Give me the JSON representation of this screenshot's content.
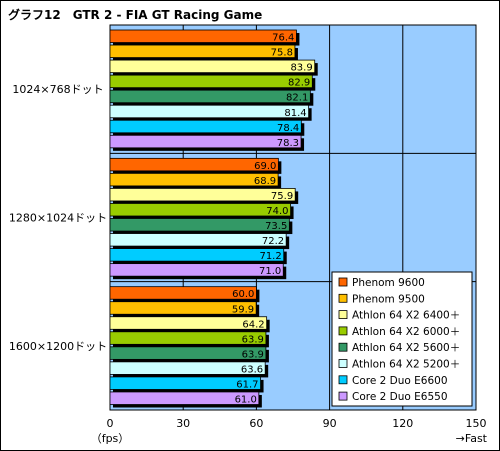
{
  "chart_data": {
    "type": "bar",
    "orientation": "horizontal",
    "title": "グラフ12　GTR 2 - FIA GT Racing Game",
    "xlabel": "（fps）",
    "x_direction_note": "→Fast",
    "xlim": [
      0,
      150
    ],
    "xticks": [
      "0",
      "30",
      "60",
      "90",
      "120",
      "150"
    ],
    "grid": true,
    "legend_position": "right-bottom",
    "categories": [
      "1024×768ドット",
      "1280×1024ドット",
      "1600×1200ドット"
    ],
    "series": [
      {
        "name": "Phenom 9600",
        "color": "#ff6600",
        "values": [
          76.4,
          69.0,
          60.0
        ],
        "labels": [
          "76.4",
          "69.0",
          "60.0"
        ]
      },
      {
        "name": "Phenom 9500",
        "color": "#ffbf00",
        "values": [
          75.8,
          68.9,
          59.9
        ],
        "labels": [
          "75.8",
          "68.9",
          "59.9"
        ]
      },
      {
        "name": "Athlon 64 X2 6400＋",
        "color": "#ffff99",
        "values": [
          83.9,
          75.9,
          64.2
        ],
        "labels": [
          "83.9",
          "75.9",
          "64.2"
        ]
      },
      {
        "name": "Athlon 64 X2 6000＋",
        "color": "#99cc00",
        "values": [
          82.9,
          74.0,
          63.9
        ],
        "labels": [
          "82.9",
          "74.0",
          "63.9"
        ]
      },
      {
        "name": "Athlon 64 X2 5600＋",
        "color": "#339966",
        "values": [
          82.1,
          73.5,
          63.9
        ],
        "labels": [
          "82.1",
          "73.5",
          "63.9"
        ]
      },
      {
        "name": "Athlon 64 X2 5200＋",
        "color": "#ccffff",
        "values": [
          81.4,
          72.2,
          63.6
        ],
        "labels": [
          "81.4",
          "72.2",
          "63.6"
        ]
      },
      {
        "name": "Core 2 Duo E6600",
        "color": "#00ccff",
        "values": [
          78.4,
          71.2,
          61.7
        ],
        "labels": [
          "78.4",
          "71.2",
          "61.7"
        ]
      },
      {
        "name": "Core 2 Duo E6550",
        "color": "#cc99ff",
        "values": [
          78.3,
          71.0,
          61.0
        ],
        "labels": [
          "78.3",
          "71.0",
          "61.0"
        ]
      }
    ],
    "plot_background": "#99ccff"
  }
}
